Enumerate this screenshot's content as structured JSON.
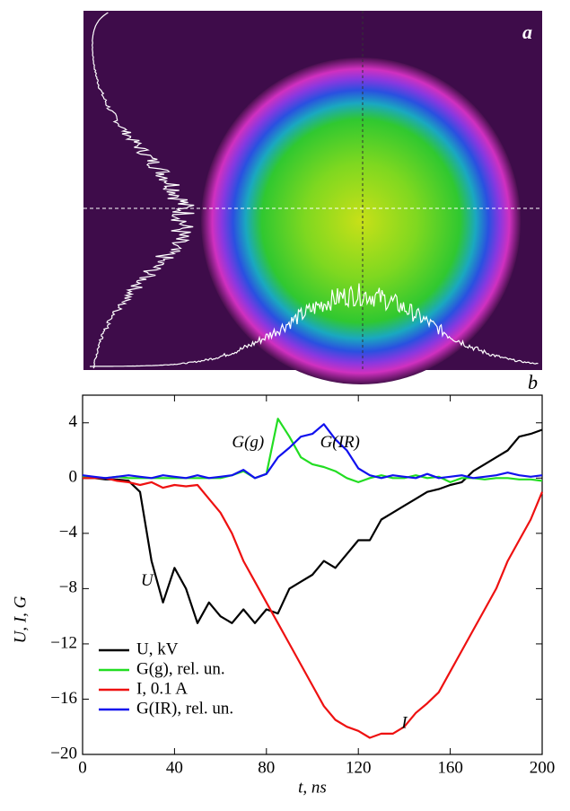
{
  "chart_data": [
    {
      "type": "image",
      "panel_label": "a"
    },
    {
      "type": "line",
      "panel_label": "b",
      "x_label": "t, ns",
      "y_label": "U, I, G",
      "x": [
        0,
        5,
        10,
        15,
        20,
        25,
        30,
        35,
        40,
        45,
        50,
        55,
        60,
        65,
        70,
        75,
        80,
        85,
        90,
        95,
        100,
        105,
        110,
        115,
        120,
        125,
        130,
        135,
        140,
        145,
        150,
        155,
        160,
        165,
        170,
        175,
        180,
        185,
        190,
        195,
        200
      ],
      "xlim": [
        0,
        200
      ],
      "ylim": [
        -20,
        6
      ],
      "xticks": [
        0,
        40,
        80,
        120,
        160,
        200
      ],
      "yticks": [
        {
          "value": -20,
          "label": "−20"
        },
        {
          "value": -16,
          "label": "−16"
        },
        {
          "value": -12,
          "label": "−12"
        },
        {
          "value": -8,
          "label": "−8"
        },
        {
          "value": -4,
          "label": "−4"
        },
        0,
        4
      ],
      "legend": "lower left",
      "series": [
        {
          "name": "U, kV",
          "color": "#000000",
          "values": [
            0,
            0,
            -0.1,
            -0.1,
            -0.2,
            -1,
            -6,
            -9,
            -6.5,
            -8,
            -10.5,
            -9,
            -10,
            -10.5,
            -9.5,
            -10.5,
            -9.5,
            -9.8,
            -8,
            -7.5,
            -7,
            -6,
            -6.5,
            -5.5,
            -4.5,
            -4.5,
            -3,
            -2.5,
            -2,
            -1.5,
            -1,
            -0.8,
            -0.5,
            -0.3,
            0.5,
            1,
            1.5,
            2,
            3,
            3.2,
            3.5
          ]
        },
        {
          "name": "G(g), rel. un.",
          "color": "#22dd22",
          "values": [
            0.1,
            0,
            0,
            0.1,
            0,
            0,
            0,
            0,
            0,
            0,
            0,
            0,
            0,
            0.2,
            0.5,
            0,
            0.3,
            4.3,
            3,
            1.5,
            1,
            0.8,
            0.5,
            0,
            -0.3,
            0,
            0.2,
            0,
            0,
            0.2,
            0,
            0.1,
            -0.3,
            0,
            0,
            -0.1,
            0,
            0,
            -0.1,
            -0.1,
            -0.2
          ]
        },
        {
          "name": "I, 0.1 A",
          "color": "#ee1111",
          "values": [
            0,
            0,
            0,
            -0.2,
            -0.3,
            -0.5,
            -0.3,
            -0.7,
            -0.5,
            -0.6,
            -0.5,
            -1.5,
            -2.5,
            -4,
            -6,
            -7.5,
            -9,
            -10.5,
            -12,
            -13.5,
            -15,
            -16.5,
            -17.5,
            -18,
            -18.3,
            -18.8,
            -18.5,
            -18.5,
            -18,
            -17,
            -16.3,
            -15.5,
            -14,
            -12.5,
            -11,
            -9.5,
            -8,
            -6,
            -4.5,
            -3,
            -1
          ]
        },
        {
          "name": "G(IR), rel. un.",
          "color": "#1111ee",
          "values": [
            0.2,
            0.1,
            0,
            0.1,
            0.2,
            0.1,
            0,
            0.2,
            0.1,
            0,
            0.2,
            0,
            0.1,
            0.2,
            0.6,
            0,
            0.3,
            1.5,
            2.2,
            3,
            3.2,
            3.9,
            2.8,
            2,
            0.7,
            0.2,
            0,
            0.2,
            0.1,
            0,
            0.3,
            0,
            0.1,
            0.2,
            0,
            0.1,
            0.2,
            0.4,
            0.2,
            0.1,
            0.2
          ]
        }
      ],
      "annotations": [
        {
          "text": "U",
          "t": 28,
          "v": -7.5
        },
        {
          "text": "I",
          "t": 140,
          "v": -17.8
        },
        {
          "text": "G(g)",
          "t": 72,
          "v": 2.5
        },
        {
          "text": "G(IR)",
          "t": 112,
          "v": 2.5
        }
      ]
    }
  ]
}
